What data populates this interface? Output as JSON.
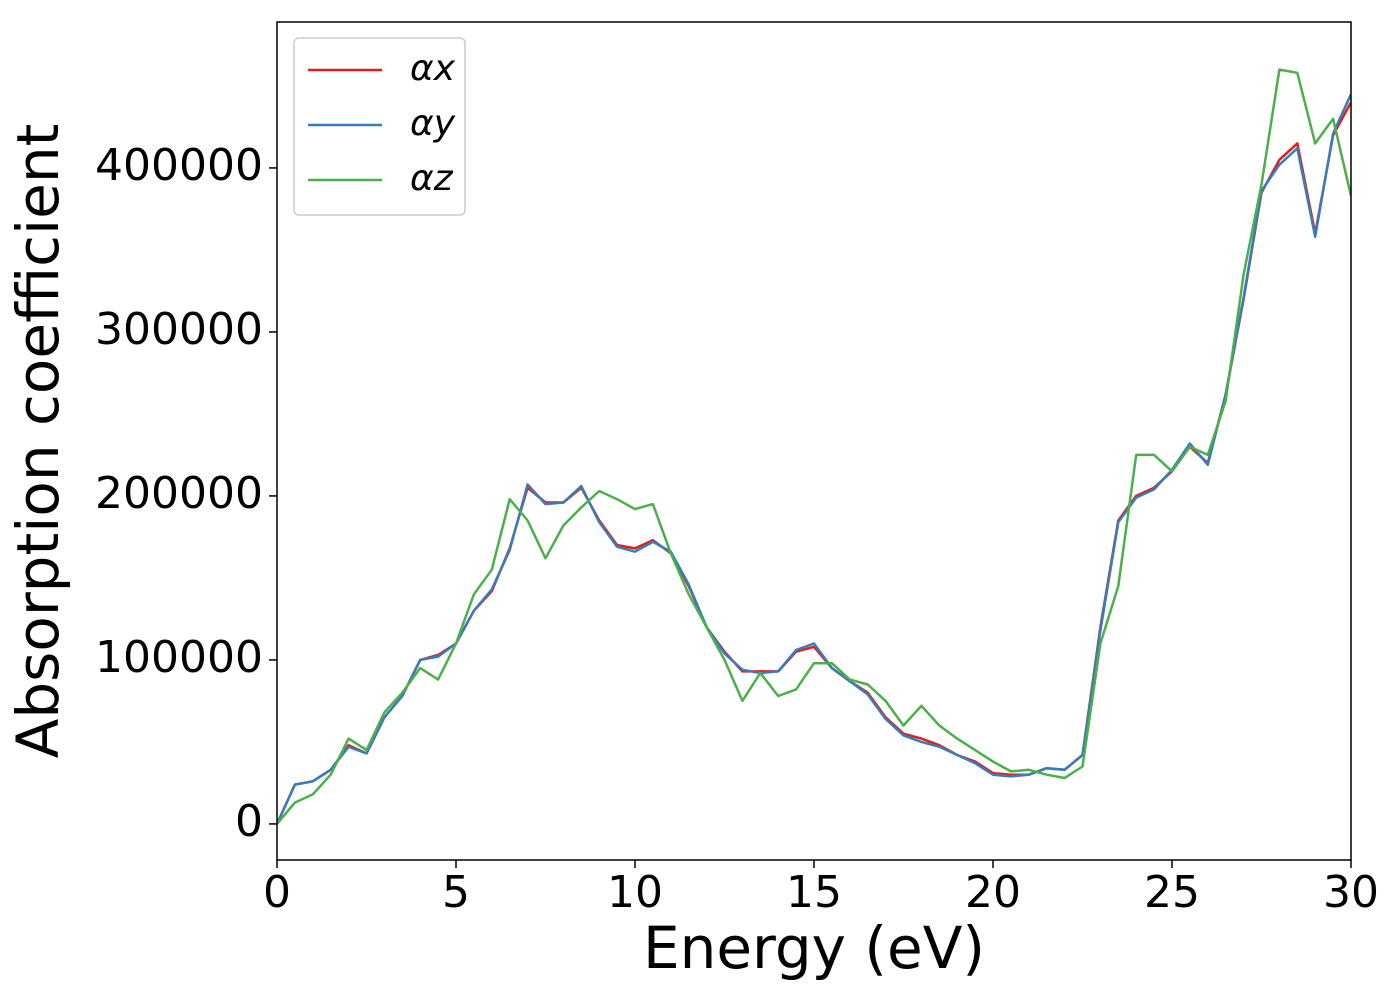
{
  "chart_data": {
    "type": "line",
    "xlabel": "Energy (eV)",
    "ylabel": "Absorption coefficient",
    "x": [
      0,
      0.5,
      1,
      1.5,
      2,
      2.5,
      3,
      3.5,
      4,
      4.5,
      5,
      5.5,
      6,
      6.5,
      7,
      7.5,
      8,
      8.5,
      9,
      9.5,
      10,
      10.5,
      11,
      11.5,
      12,
      12.5,
      13,
      13.5,
      14,
      14.5,
      15,
      15.5,
      16,
      16.5,
      17,
      17.5,
      18,
      18.5,
      19,
      19.5,
      20,
      20.5,
      21,
      21.5,
      22,
      22.5,
      23,
      23.5,
      24,
      24.5,
      25,
      25.5,
      26,
      26.5,
      27,
      27.5,
      28,
      28.5,
      29,
      29.5,
      30
    ],
    "series": [
      {
        "name": "αx",
        "color": "#e41a1c",
        "values": [
          0,
          24000,
          26000,
          33000,
          48000,
          43000,
          65000,
          78000,
          100000,
          103000,
          110000,
          130000,
          142000,
          168000,
          205000,
          196000,
          196000,
          205000,
          185000,
          170000,
          168000,
          173000,
          165000,
          145000,
          120000,
          105000,
          93000,
          93000,
          93000,
          105000,
          108000,
          95000,
          87000,
          80000,
          65000,
          55000,
          52000,
          48000,
          42000,
          38000,
          31000,
          30000,
          30000,
          34000,
          33000,
          42000,
          120000,
          185000,
          200000,
          205000,
          215000,
          230000,
          220000,
          262000,
          320000,
          385000,
          405000,
          415000,
          360000,
          420000,
          440000
        ]
      },
      {
        "name": "αy",
        "color": "#377eb8",
        "values": [
          0,
          24000,
          26000,
          33000,
          47000,
          43000,
          65000,
          78000,
          100000,
          102000,
          110000,
          130000,
          143000,
          167000,
          207000,
          195000,
          196000,
          206000,
          184000,
          169000,
          166000,
          172000,
          166000,
          146000,
          120000,
          104000,
          94000,
          92000,
          93000,
          106000,
          110000,
          95000,
          87000,
          79000,
          64000,
          54000,
          50000,
          47000,
          42000,
          37000,
          30000,
          29000,
          30000,
          34000,
          33000,
          42000,
          118000,
          184000,
          199000,
          204000,
          216000,
          232000,
          219000,
          262000,
          321000,
          386000,
          402000,
          412000,
          358000,
          421000,
          445000
        ]
      },
      {
        "name": "αz",
        "color": "#4daf4a",
        "values": [
          0,
          13000,
          18000,
          30000,
          52000,
          45000,
          68000,
          80000,
          95000,
          88000,
          110000,
          140000,
          155000,
          198000,
          185000,
          162000,
          182000,
          193000,
          203000,
          198000,
          192000,
          195000,
          165000,
          140000,
          120000,
          100000,
          75000,
          92000,
          78000,
          82000,
          98000,
          98000,
          88000,
          85000,
          75000,
          60000,
          72000,
          60000,
          52000,
          45000,
          38000,
          32000,
          33000,
          30000,
          28000,
          35000,
          110000,
          145000,
          225000,
          225000,
          215000,
          230000,
          225000,
          258000,
          335000,
          390000,
          460000,
          458000,
          415000,
          430000,
          383000
        ]
      }
    ],
    "xlim": [
      0,
      30
    ],
    "xticks": [
      0,
      5,
      10,
      15,
      20,
      25,
      30
    ],
    "ylim": [
      -22000,
      489000
    ],
    "yticks": [
      0,
      100000,
      200000,
      300000,
      400000
    ],
    "legend": "upper left"
  }
}
